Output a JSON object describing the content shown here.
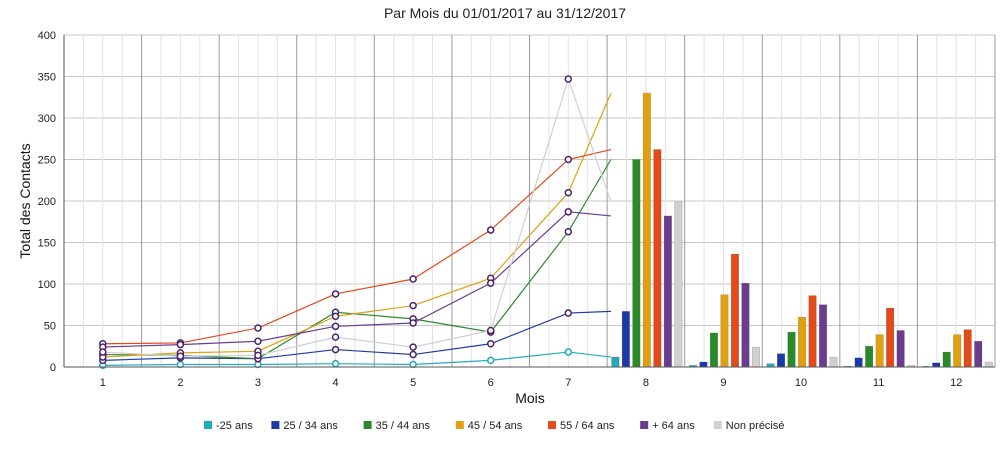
{
  "chart_data": {
    "type": "line",
    "title": "Par Mois du 01/01/2017 au 31/12/2017",
    "xlabel": "Mois",
    "ylabel": "Total des Contacts",
    "ylim": [
      0,
      400
    ],
    "y_ticks": [
      0,
      50,
      100,
      150,
      200,
      250,
      300,
      350,
      400
    ],
    "categories": [
      "1",
      "2",
      "3",
      "4",
      "5",
      "6",
      "7",
      "8",
      "9",
      "10",
      "11",
      "12"
    ],
    "grid": true,
    "legend_position": "bottom",
    "series": [
      {
        "name": "-25 ans",
        "color": "#22aabb",
        "values": [
          2,
          3,
          3,
          4,
          3,
          8,
          18,
          12,
          2,
          4,
          1,
          1
        ]
      },
      {
        "name": "25 / 34 ans",
        "color": "#1a3aa8",
        "values": [
          8,
          11,
          10,
          21,
          15,
          28,
          65,
          67,
          6,
          16,
          11,
          5
        ]
      },
      {
        "name": "35 / 44 ans",
        "color": "#2a8a2a",
        "values": [
          15,
          14,
          10,
          66,
          58,
          42,
          163,
          250,
          41,
          42,
          25,
          18
        ]
      },
      {
        "name": "45 / 54 ans",
        "color": "#e0a010",
        "values": [
          12,
          17,
          19,
          61,
          74,
          107,
          210,
          330,
          87,
          60,
          39,
          39
        ]
      },
      {
        "name": "55 / 64 ans",
        "color": "#e24a1a",
        "values": [
          28,
          29,
          47,
          88,
          106,
          165,
          250,
          262,
          136,
          86,
          71,
          45
        ]
      },
      {
        "name": "+ 64 ans",
        "color": "#6a3d8e",
        "values": [
          24,
          27,
          31,
          49,
          53,
          101,
          187,
          182,
          101,
          75,
          44,
          31
        ]
      },
      {
        "name": "Non précisé",
        "color": "#d0d0d0",
        "values": [
          18,
          13,
          14,
          36,
          24,
          44,
          347,
          199,
          24,
          12,
          2,
          6
        ]
      }
    ]
  }
}
